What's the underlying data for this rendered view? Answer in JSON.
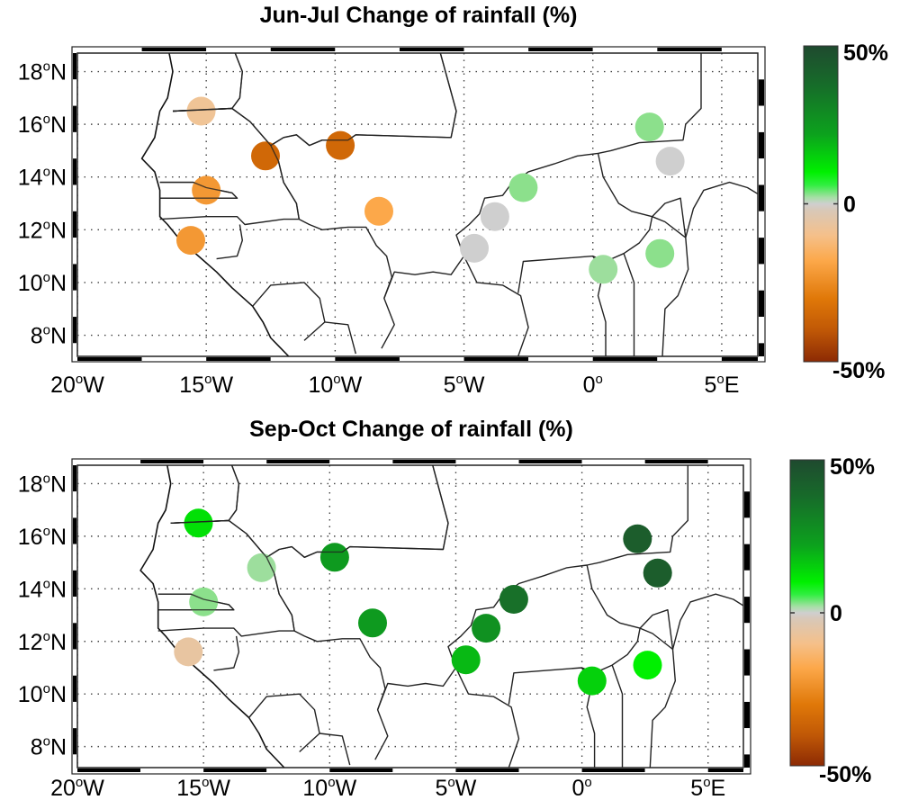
{
  "chart_data": [
    {
      "type": "scatter",
      "subtype": "map-station-markers",
      "title": "Jun-Jul Change of rainfall (%)",
      "xlabel": "",
      "ylabel": "",
      "xlim": [
        -20,
        6.4
      ],
      "ylim": [
        7.2,
        18.7
      ],
      "xticks": [
        {
          "value": -20,
          "deg": "20",
          "hem": "W"
        },
        {
          "value": -15,
          "deg": "15",
          "hem": "W"
        },
        {
          "value": -10,
          "deg": "10",
          "hem": "W"
        },
        {
          "value": -5,
          "deg": "5",
          "hem": "W"
        },
        {
          "value": 0,
          "deg": "0",
          "hem": ""
        },
        {
          "value": 5,
          "deg": "5",
          "hem": "E"
        }
      ],
      "yticks": [
        {
          "value": 18,
          "deg": "18",
          "hem": "N"
        },
        {
          "value": 16,
          "deg": "16",
          "hem": "N"
        },
        {
          "value": 14,
          "deg": "14",
          "hem": "N"
        },
        {
          "value": 12,
          "deg": "12",
          "hem": "N"
        },
        {
          "value": 10,
          "deg": "10",
          "hem": "N"
        },
        {
          "value": 8,
          "deg": "8",
          "hem": "N"
        }
      ],
      "grid": true,
      "colorbar": {
        "min": -50,
        "max": 50,
        "labels": [
          "50%",
          "0",
          "-50%"
        ],
        "placement": "right"
      },
      "stations": [
        {
          "lon": -15.2,
          "lat": 16.5,
          "change": -10
        },
        {
          "lon": -12.7,
          "lat": 14.8,
          "change": -35
        },
        {
          "lon": -9.8,
          "lat": 15.2,
          "change": -35
        },
        {
          "lon": -15.0,
          "lat": 13.5,
          "change": -22
        },
        {
          "lon": -15.6,
          "lat": 11.6,
          "change": -22
        },
        {
          "lon": -8.3,
          "lat": 12.7,
          "change": -18
        },
        {
          "lon": -2.7,
          "lat": 13.6,
          "change": 8
        },
        {
          "lon": -3.8,
          "lat": 12.5,
          "change": 0
        },
        {
          "lon": -4.6,
          "lat": 11.3,
          "change": 0
        },
        {
          "lon": 0.4,
          "lat": 10.5,
          "change": 5
        },
        {
          "lon": 2.6,
          "lat": 11.1,
          "change": 8
        },
        {
          "lon": 2.2,
          "lat": 15.9,
          "change": 8
        },
        {
          "lon": 3.0,
          "lat": 14.6,
          "change": 0
        }
      ]
    },
    {
      "type": "scatter",
      "subtype": "map-station-markers",
      "title": "Sep-Oct Change of rainfall (%)",
      "xlabel": "",
      "ylabel": "",
      "xlim": [
        -20,
        6.4
      ],
      "ylim": [
        7.2,
        18.7
      ],
      "xticks": [
        {
          "value": -20,
          "deg": "20",
          "hem": "W"
        },
        {
          "value": -15,
          "deg": "15",
          "hem": "W"
        },
        {
          "value": -10,
          "deg": "10",
          "hem": "W"
        },
        {
          "value": -5,
          "deg": "5",
          "hem": "W"
        },
        {
          "value": 0,
          "deg": "0",
          "hem": ""
        },
        {
          "value": 5,
          "deg": "5",
          "hem": "E"
        }
      ],
      "yticks": [
        {
          "value": 18,
          "deg": "18",
          "hem": "N"
        },
        {
          "value": 16,
          "deg": "16",
          "hem": "N"
        },
        {
          "value": 14,
          "deg": "14",
          "hem": "N"
        },
        {
          "value": 12,
          "deg": "12",
          "hem": "N"
        },
        {
          "value": 10,
          "deg": "10",
          "hem": "N"
        },
        {
          "value": 8,
          "deg": "8",
          "hem": "N"
        }
      ],
      "grid": true,
      "colorbar": {
        "min": -50,
        "max": 50,
        "labels": [
          "50%",
          "0",
          "-50%"
        ],
        "placement": "right"
      },
      "stations": [
        {
          "lon": -15.2,
          "lat": 16.5,
          "change": 20
        },
        {
          "lon": -12.7,
          "lat": 14.8,
          "change": 5
        },
        {
          "lon": -9.8,
          "lat": 15.2,
          "change": 30
        },
        {
          "lon": -15.0,
          "lat": 13.5,
          "change": 8
        },
        {
          "lon": -15.6,
          "lat": 11.6,
          "change": -8
        },
        {
          "lon": -8.3,
          "lat": 12.7,
          "change": 30
        },
        {
          "lon": -2.7,
          "lat": 13.6,
          "change": 40
        },
        {
          "lon": -3.8,
          "lat": 12.5,
          "change": 32
        },
        {
          "lon": -4.6,
          "lat": 11.3,
          "change": 25
        },
        {
          "lon": 0.4,
          "lat": 10.5,
          "change": 22
        },
        {
          "lon": 2.6,
          "lat": 11.1,
          "change": 18
        },
        {
          "lon": 2.2,
          "lat": 15.9,
          "change": 45
        },
        {
          "lon": 3.0,
          "lat": 14.6,
          "change": 45
        }
      ]
    }
  ]
}
